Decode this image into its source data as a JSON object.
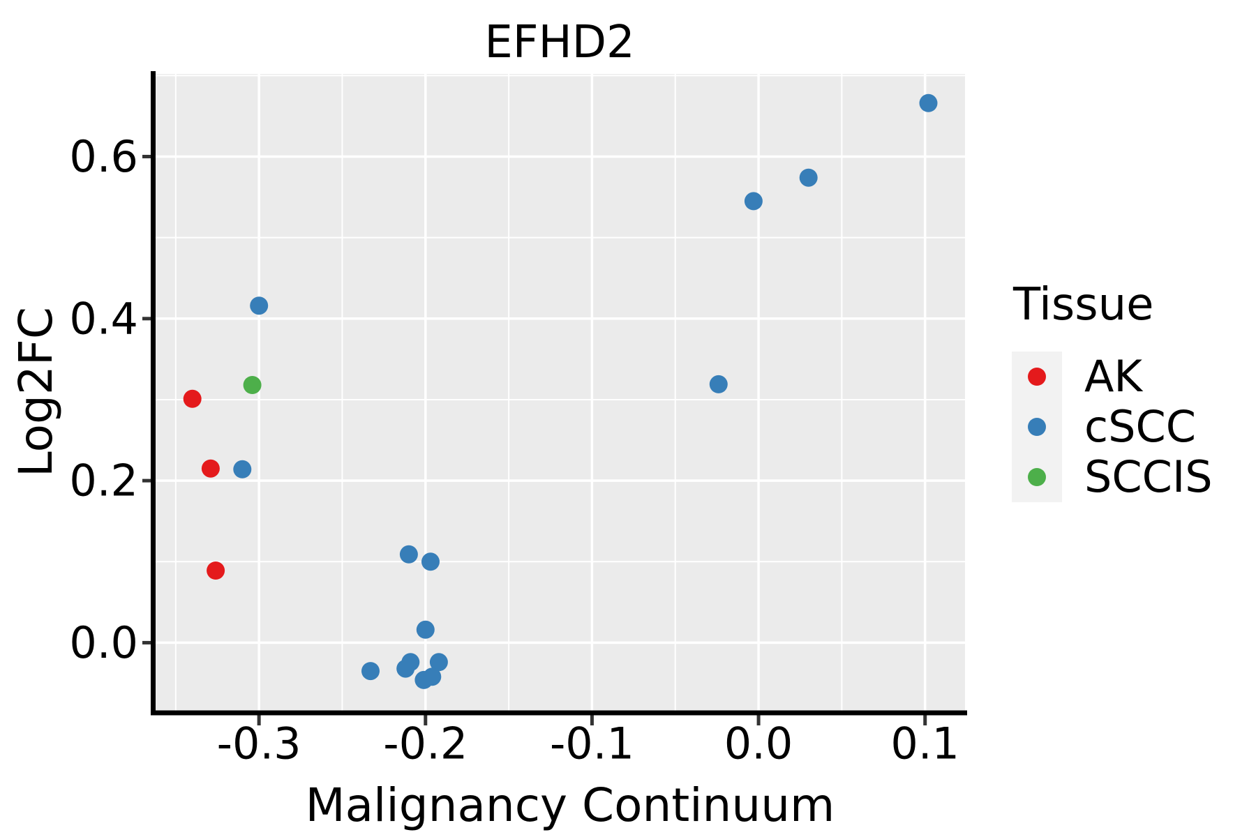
{
  "chart_data": {
    "type": "scatter",
    "title": "EFHD2",
    "xlabel": "Malignancy Continuum",
    "ylabel": "Log2FC",
    "xlim": [
      -0.3625,
      0.124
    ],
    "ylim": [
      -0.084,
      0.702
    ],
    "x_ticks": {
      "values": [
        -0.3,
        -0.2,
        -0.1,
        0.0,
        0.1
      ],
      "labels": [
        "-0.3",
        "-0.2",
        "-0.1",
        "0.0",
        "0.1"
      ]
    },
    "y_ticks": {
      "values": [
        0.0,
        0.2,
        0.4,
        0.6
      ],
      "labels": [
        "0.0",
        "0.2",
        "0.4",
        "0.6"
      ]
    },
    "x_minor_ticks": [
      -0.35,
      -0.25,
      -0.15,
      -0.05,
      0.05
    ],
    "y_minor_ticks": [
      0.1,
      0.3,
      0.5,
      0.7
    ],
    "grid": "on",
    "panel_background": "#EBEBEB",
    "grid_color": "#FFFFFF",
    "axis_line_color": "#000000",
    "tick_color": "#333333",
    "text_color": "#000000",
    "point_radius": 13,
    "legend": {
      "title": "Tissue",
      "position": "right",
      "key_fill": "#F2F2F2"
    },
    "series": [
      {
        "name": "AK",
        "color": "#E41A1C",
        "points": [
          [
            -0.34,
            0.301
          ],
          [
            -0.329,
            0.215
          ],
          [
            -0.326,
            0.089
          ]
        ]
      },
      {
        "name": "cSCC",
        "color": "#377EB8",
        "points": [
          [
            -0.3,
            0.416
          ],
          [
            -0.31,
            0.214
          ],
          [
            -0.21,
            0.109
          ],
          [
            -0.197,
            0.1
          ],
          [
            -0.2,
            0.016
          ],
          [
            -0.233,
            -0.035
          ],
          [
            -0.212,
            -0.032
          ],
          [
            -0.209,
            -0.024
          ],
          [
            -0.192,
            -0.024
          ],
          [
            -0.201,
            -0.046
          ],
          [
            -0.196,
            -0.042
          ],
          [
            -0.024,
            0.319
          ],
          [
            -0.003,
            0.545
          ],
          [
            0.03,
            0.574
          ],
          [
            0.102,
            0.666
          ]
        ]
      },
      {
        "name": "SCCIS",
        "color": "#4DAF4A",
        "points": [
          [
            -0.304,
            0.318
          ]
        ]
      }
    ]
  }
}
